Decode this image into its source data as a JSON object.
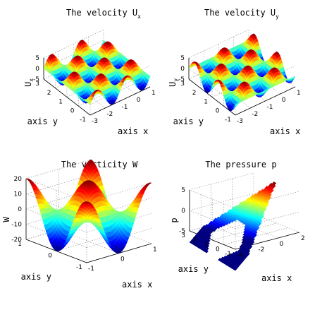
{
  "chart_data": [
    {
      "type": "surface",
      "title": "The velocity U",
      "title_subscript": "x",
      "xlabel": "axis x",
      "ylabel": "axis y",
      "zlabel": "U",
      "zlabel_subscript": "x",
      "x_range": [
        -3,
        1
      ],
      "y_range": [
        -1,
        3
      ],
      "z_range": [
        -5,
        5
      ],
      "x_ticks": [
        "-3",
        "-2",
        "-1",
        "0",
        "1"
      ],
      "y_ticks": [
        "-1",
        "0",
        "1",
        "2",
        "3"
      ],
      "z_ticks": [
        "-5",
        "0",
        "5"
      ],
      "domain_shape": "rectangle",
      "colormap": "jet",
      "grid": true
    },
    {
      "type": "surface",
      "title": "The velocity U",
      "title_subscript": "y",
      "xlabel": "axis x",
      "ylabel": "axis y",
      "zlabel": "U",
      "zlabel_subscript": "y",
      "x_range": [
        -3,
        1
      ],
      "y_range": [
        -1,
        3
      ],
      "z_range": [
        -5,
        5
      ],
      "x_ticks": [
        "-3",
        "-2",
        "-1",
        "0",
        "1"
      ],
      "y_ticks": [
        "-1",
        "0",
        "1",
        "2",
        "3"
      ],
      "z_ticks": [
        "-5",
        "0",
        "5"
      ],
      "domain_shape": "rectangle",
      "colormap": "jet",
      "grid": true
    },
    {
      "type": "surface",
      "title": "The vorticity W",
      "xlabel": "axis x",
      "ylabel": "axis y",
      "zlabel": "W",
      "x_range": [
        -1,
        1
      ],
      "y_range": [
        -1,
        1
      ],
      "z_range": [
        -20,
        20
      ],
      "x_ticks": [
        "-1",
        "0",
        "1"
      ],
      "y_ticks": [
        "-1",
        "0",
        "1"
      ],
      "z_ticks": [
        "-20",
        "-10",
        "0",
        "10",
        "20"
      ],
      "domain_shape": "rectangle",
      "colormap": "jet",
      "grid": true
    },
    {
      "type": "surface",
      "title": "The pressure p",
      "xlabel": "axis x",
      "ylabel": "axis y",
      "zlabel": "p",
      "x_range": [
        -4,
        2
      ],
      "y_range": [
        -1,
        3
      ],
      "z_range": [
        -5,
        5
      ],
      "x_ticks": [
        "-4",
        "-2",
        "0",
        "2"
      ],
      "y_ticks": [
        "-1",
        "0",
        "1",
        "2",
        "3"
      ],
      "z_ticks": [
        "-5",
        "0",
        "5"
      ],
      "domain_shape": "arrow",
      "colormap": "jet",
      "grid": true
    }
  ]
}
